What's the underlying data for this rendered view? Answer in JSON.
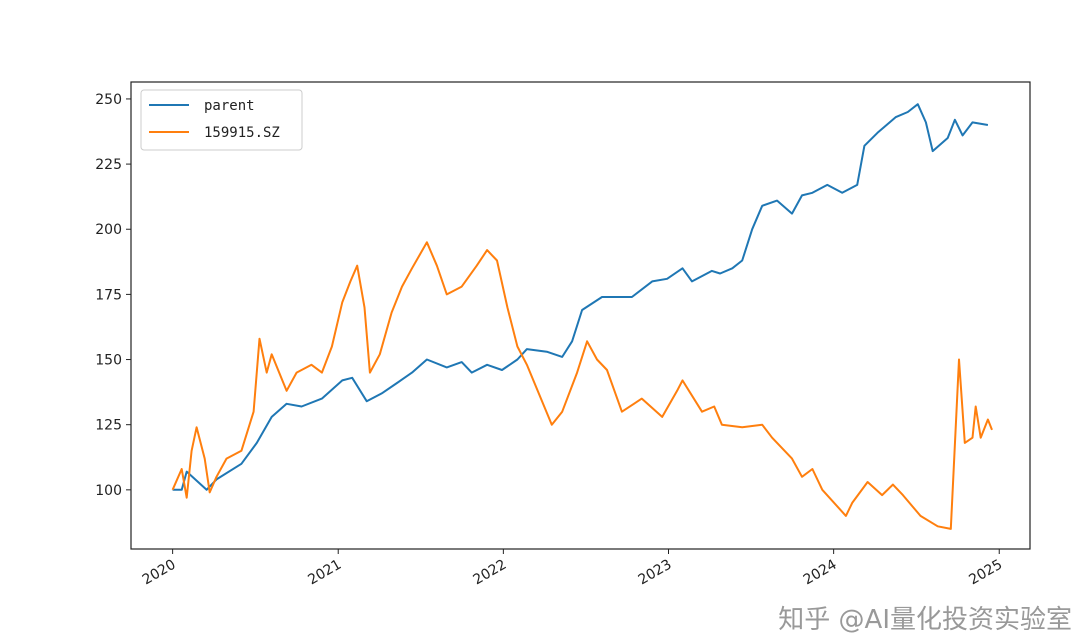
{
  "chart_data": {
    "type": "line",
    "title": "",
    "xlabel": "",
    "ylabel": "",
    "xlim": [
      "2019-10-01",
      "2025-03-10"
    ],
    "ylim": [
      77.3,
      256.5
    ],
    "x_ticks": [
      "2020",
      "2021",
      "2022",
      "2023",
      "2024",
      "2025"
    ],
    "y_ticks": [
      100,
      125,
      150,
      175,
      200,
      225,
      250
    ],
    "grid": false,
    "legend_position": "top-left",
    "series": [
      {
        "name": "parent",
        "color": "#1f77b4",
        "points": [
          [
            "2020-01-01",
            100
          ],
          [
            "2020-01-21",
            100
          ],
          [
            "2020-02-01",
            107
          ],
          [
            "2020-03-16",
            100
          ],
          [
            "2020-04-07",
            104
          ],
          [
            "2020-06-01",
            110
          ],
          [
            "2020-07-05",
            118
          ],
          [
            "2020-08-07",
            128
          ],
          [
            "2020-09-09",
            133
          ],
          [
            "2020-10-12",
            132
          ],
          [
            "2020-11-26",
            135
          ],
          [
            "2021-01-10",
            142
          ],
          [
            "2021-02-01",
            143
          ],
          [
            "2021-03-05",
            134
          ],
          [
            "2021-04-07",
            137
          ],
          [
            "2021-05-11",
            141
          ],
          [
            "2021-06-13",
            145
          ],
          [
            "2021-07-16",
            150
          ],
          [
            "2021-08-29",
            147
          ],
          [
            "2021-10-01",
            149
          ],
          [
            "2021-10-23",
            145
          ],
          [
            "2021-11-26",
            148
          ],
          [
            "2021-12-29",
            146
          ],
          [
            "2022-02-01",
            150
          ],
          [
            "2022-02-22",
            154
          ],
          [
            "2022-04-07",
            153
          ],
          [
            "2022-05-11",
            151
          ],
          [
            "2022-06-02",
            157
          ],
          [
            "2022-06-24",
            169
          ],
          [
            "2022-08-07",
            174
          ],
          [
            "2022-10-12",
            174
          ],
          [
            "2022-11-26",
            180
          ],
          [
            "2022-12-29",
            181
          ],
          [
            "2023-02-01",
            185
          ],
          [
            "2023-02-22",
            180
          ],
          [
            "2023-04-07",
            184
          ],
          [
            "2023-04-25",
            183
          ],
          [
            "2023-05-22",
            185
          ],
          [
            "2023-06-13",
            188
          ],
          [
            "2023-07-05",
            200
          ],
          [
            "2023-07-27",
            209
          ],
          [
            "2023-08-29",
            211
          ],
          [
            "2023-10-01",
            206
          ],
          [
            "2023-10-23",
            213
          ],
          [
            "2023-11-15",
            214
          ],
          [
            "2023-12-18",
            217
          ],
          [
            "2024-01-20",
            214
          ],
          [
            "2024-02-22",
            217
          ],
          [
            "2024-03-09",
            232
          ],
          [
            "2024-04-07",
            237
          ],
          [
            "2024-05-17",
            243
          ],
          [
            "2024-06-13",
            245
          ],
          [
            "2024-07-05",
            248
          ],
          [
            "2024-07-23",
            241
          ],
          [
            "2024-08-07",
            230
          ],
          [
            "2024-09-09",
            235
          ],
          [
            "2024-09-25",
            242
          ],
          [
            "2024-10-12",
            236
          ],
          [
            "2024-11-03",
            241
          ],
          [
            "2024-12-07",
            240
          ]
        ]
      },
      {
        "name": "159915.SZ",
        "color": "#ff7f0e",
        "points": [
          [
            "2020-01-01",
            100
          ],
          [
            "2020-01-21",
            108
          ],
          [
            "2020-02-01",
            97
          ],
          [
            "2020-02-12",
            115
          ],
          [
            "2020-02-23",
            124
          ],
          [
            "2020-03-12",
            112
          ],
          [
            "2020-03-23",
            99
          ],
          [
            "2020-04-07",
            105
          ],
          [
            "2020-04-29",
            112
          ],
          [
            "2020-06-01",
            115
          ],
          [
            "2020-06-28",
            130
          ],
          [
            "2020-07-11",
            158
          ],
          [
            "2020-07-27",
            145
          ],
          [
            "2020-08-07",
            152
          ],
          [
            "2020-09-09",
            138
          ],
          [
            "2020-10-01",
            145
          ],
          [
            "2020-11-03",
            148
          ],
          [
            "2020-11-26",
            145
          ],
          [
            "2020-12-18",
            155
          ],
          [
            "2021-01-10",
            172
          ],
          [
            "2021-01-28",
            180
          ],
          [
            "2021-02-12",
            186
          ],
          [
            "2021-02-28",
            170
          ],
          [
            "2021-03-12",
            145
          ],
          [
            "2021-04-03",
            152
          ],
          [
            "2021-04-29",
            168
          ],
          [
            "2021-05-22",
            178
          ],
          [
            "2021-06-13",
            185
          ],
          [
            "2021-07-16",
            195
          ],
          [
            "2021-08-07",
            186
          ],
          [
            "2021-08-29",
            175
          ],
          [
            "2021-10-01",
            178
          ],
          [
            "2021-11-03",
            186
          ],
          [
            "2021-11-26",
            192
          ],
          [
            "2021-12-18",
            188
          ],
          [
            "2022-01-10",
            170
          ],
          [
            "2022-02-01",
            155
          ],
          [
            "2022-02-22",
            148
          ],
          [
            "2022-04-18",
            125
          ],
          [
            "2022-05-11",
            130
          ],
          [
            "2022-06-13",
            145
          ],
          [
            "2022-07-05",
            157
          ],
          [
            "2022-07-27",
            150
          ],
          [
            "2022-08-18",
            146
          ],
          [
            "2022-09-20",
            130
          ],
          [
            "2022-11-03",
            135
          ],
          [
            "2022-12-18",
            128
          ],
          [
            "2023-01-20",
            138
          ],
          [
            "2023-02-01",
            142
          ],
          [
            "2023-03-16",
            130
          ],
          [
            "2023-04-12",
            132
          ],
          [
            "2023-04-29",
            125
          ],
          [
            "2023-06-13",
            124
          ],
          [
            "2023-07-27",
            125
          ],
          [
            "2023-08-18",
            120
          ],
          [
            "2023-10-01",
            112
          ],
          [
            "2023-10-23",
            105
          ],
          [
            "2023-11-15",
            108
          ],
          [
            "2023-12-07",
            100
          ],
          [
            "2024-01-28",
            90
          ],
          [
            "2024-02-11",
            95
          ],
          [
            "2024-03-16",
            103
          ],
          [
            "2024-04-17",
            98
          ],
          [
            "2024-05-11",
            102
          ],
          [
            "2024-06-02",
            98
          ],
          [
            "2024-07-11",
            90
          ],
          [
            "2024-08-18",
            86
          ],
          [
            "2024-09-16",
            85
          ],
          [
            "2024-10-04",
            150
          ],
          [
            "2024-10-17",
            118
          ],
          [
            "2024-11-03",
            120
          ],
          [
            "2024-11-10",
            132
          ],
          [
            "2024-11-21",
            120
          ],
          [
            "2024-12-07",
            127
          ],
          [
            "2024-12-16",
            123
          ]
        ]
      }
    ]
  },
  "watermark": "知乎 @AI量化投资实验室"
}
